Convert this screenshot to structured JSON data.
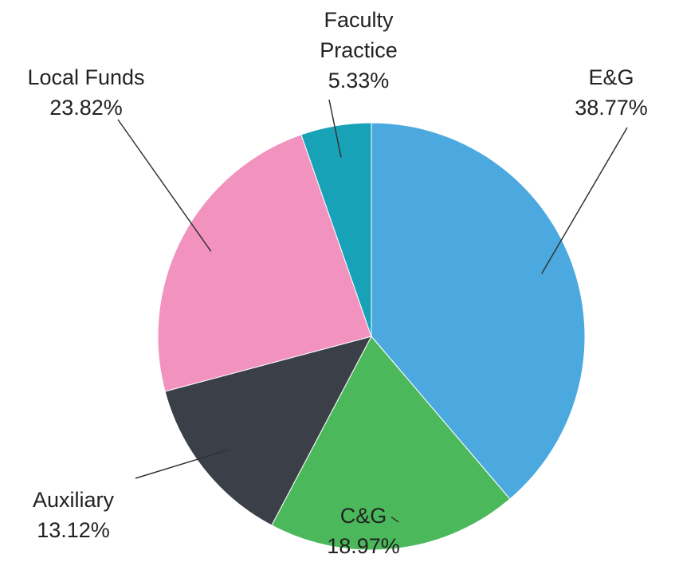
{
  "chart_data": {
    "type": "pie",
    "categories": [
      "E&G",
      "C&G",
      "Auxiliary",
      "Local Funds",
      "Faculty Practice"
    ],
    "values": [
      38.77,
      18.97,
      13.12,
      23.82,
      5.33
    ],
    "value_labels": [
      "38.77%",
      "18.97%",
      "13.12%",
      "23.82%",
      "5.33%"
    ],
    "colors": [
      "#4ba9e0",
      "#4cb85c",
      "#3b3f47",
      "#f292bf",
      "#17a2b8"
    ]
  }
}
